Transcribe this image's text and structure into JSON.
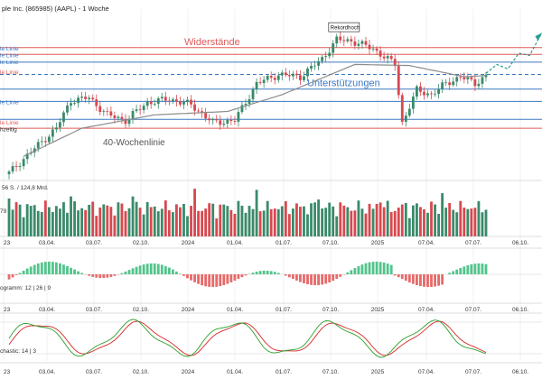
{
  "title": "ple Inc. (865985) (AAPL) - 1 Woche",
  "colors": {
    "up": "#3a8a6a",
    "down": "#d8484f",
    "resistance": "#e05a5a",
    "support": "#3b78c2",
    "ma": "#8c8c8c",
    "stochK": "#2ca02c",
    "stochD": "#d62728",
    "grid": "#e6e6e6",
    "axisText": "#333333",
    "projection": "#2a9d8f"
  },
  "x_tick_labels": [
    "23",
    "03.04.",
    "03.07.",
    "02.10.",
    "2024",
    "01.04.",
    "01.07.",
    "07.10.",
    "2025",
    "07.04.",
    "07.07.",
    "06.10."
  ],
  "chart_data": [
    {
      "type": "candlestick",
      "title": "ple Inc. (865985) (AAPL) - 1 Woche",
      "x_start": "2023-01",
      "x_end": "2025-10",
      "ylim": [
        120,
        265
      ],
      "key_levels": [
        {
          "name": "resistance_1",
          "value": 237,
          "style": "solid",
          "color": "resistance",
          "label": "Widerstände"
        },
        {
          "name": "resistance_2",
          "value": 231,
          "style": "solid",
          "color": "resistance",
          "label": ""
        },
        {
          "name": "blue_1",
          "value": 224,
          "style": "solid",
          "color": "support",
          "label": ""
        },
        {
          "name": "blue_2",
          "value": 213,
          "style": "dashed",
          "color": "support",
          "label": ""
        },
        {
          "name": "support_1",
          "value": 200,
          "style": "solid",
          "color": "support",
          "label": "Unterstützungen"
        },
        {
          "name": "support_2",
          "value": 189,
          "style": "solid",
          "color": "support",
          "label": ""
        },
        {
          "name": "support_3",
          "value": 173,
          "style": "solid",
          "color": "support",
          "label": ""
        },
        {
          "name": "red_low",
          "value": 165,
          "style": "solid",
          "color": "resistance",
          "label": ""
        }
      ],
      "edge_labels": [
        {
          "text": "le Linie",
          "value": 236,
          "color": "support"
        },
        {
          "text": "le Linie",
          "value": 230,
          "color": "support"
        },
        {
          "text": "le Linie",
          "value": 224,
          "color": "support"
        },
        {
          "text": "le Linie",
          "value": 215,
          "color": "resistance"
        },
        {
          "text": "le Linie",
          "value": 188,
          "color": "support"
        },
        {
          "text": "le Linie",
          "value": 170,
          "color": "resistance"
        },
        {
          "text": "hzeitig",
          "value": 164,
          "color": "axisText"
        }
      ],
      "annotations": {
        "record_high": "Rekordhoch",
        "ma_label": "40-Wochenlinie",
        "resistance_label": "Widerstände",
        "support_label": "Unterstützungen"
      },
      "close_keypoints": [
        [
          0,
          125
        ],
        [
          6,
          144
        ],
        [
          13,
          165
        ],
        [
          17,
          190
        ],
        [
          22,
          192
        ],
        [
          27,
          177
        ],
        [
          32,
          172
        ],
        [
          38,
          188
        ],
        [
          44,
          191
        ],
        [
          50,
          186
        ],
        [
          56,
          170
        ],
        [
          62,
          172
        ],
        [
          68,
          205
        ],
        [
          74,
          213
        ],
        [
          80,
          211
        ],
        [
          86,
          227
        ],
        [
          90,
          244
        ],
        [
          94,
          243
        ],
        [
          100,
          236
        ],
        [
          106,
          222
        ],
        [
          108,
          170
        ],
        [
          112,
          199
        ],
        [
          116,
          195
        ],
        [
          120,
          205
        ],
        [
          124,
          211
        ],
        [
          128,
          205
        ],
        [
          131,
          212
        ]
      ],
      "ma_keypoints": [
        [
          4,
          140
        ],
        [
          20,
          165
        ],
        [
          40,
          177
        ],
        [
          60,
          180
        ],
        [
          75,
          195
        ],
        [
          95,
          222
        ],
        [
          110,
          221
        ],
        [
          125,
          211
        ],
        [
          131,
          212
        ]
      ],
      "projection_keypoints": [
        [
          131,
          214
        ],
        [
          134,
          222
        ],
        [
          137,
          218
        ],
        [
          140,
          232
        ],
        [
          143,
          230
        ],
        [
          146,
          248
        ]
      ],
      "volume_label": "56 S. / 124,8 Mrd.",
      "volume_axis_label": "79",
      "macd_label": "ogramm: 12 | 26 | 9",
      "stoch_label": "chastic: 14 | 3"
    }
  ]
}
